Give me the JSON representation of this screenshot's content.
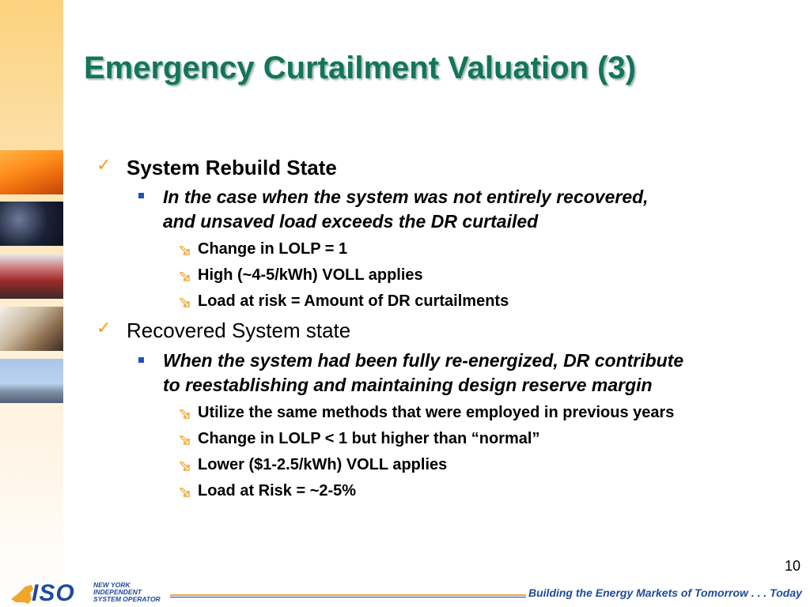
{
  "slide": {
    "title": "Emergency Curtailment Valuation  (3)",
    "page_number": "10"
  },
  "sections": [
    {
      "heading": "System Rebuild State",
      "subpoint": {
        "line1": "In the case when the system was not entirely recovered,",
        "line2": "and unsaved load exceeds the DR curtailed"
      },
      "items": [
        "Change in LOLP = 1",
        "High (~4-5/kWh) VOLL applies",
        "Load at risk = Amount of DR curtailments"
      ]
    },
    {
      "heading": "Recovered System state",
      "subpoint": {
        "line1": "When the system had been fully re-energized, DR contribute",
        "line2": "to reestablishing and maintaining design reserve margin"
      },
      "items": [
        "Utilize the same methods that were employed in previous years",
        "Change in LOLP < 1 but higher than “normal”",
        "Lower ($1-2.5/kWh) VOLL applies",
        "Load at Risk = ~2-5%"
      ]
    }
  ],
  "footer": {
    "logo_mark": "ISO",
    "logo_line1": "NEW YORK",
    "logo_line2": "INDEPENDENT",
    "logo_line3": "SYSTEM OPERATOR",
    "tagline": "Building the Energy Markets of Tomorrow . . . Today"
  },
  "colors": {
    "title": "#12755b",
    "check": "#f0a020",
    "square_bullet": "#1f4fbf",
    "brand_blue": "#1f4aa0",
    "brand_orange": "#f2a52b"
  },
  "icons": {
    "heading_bullet": "checkmark-icon",
    "subpoint_bullet": "square-bullet-icon",
    "item_bullet": "curved-arrow-icon"
  }
}
